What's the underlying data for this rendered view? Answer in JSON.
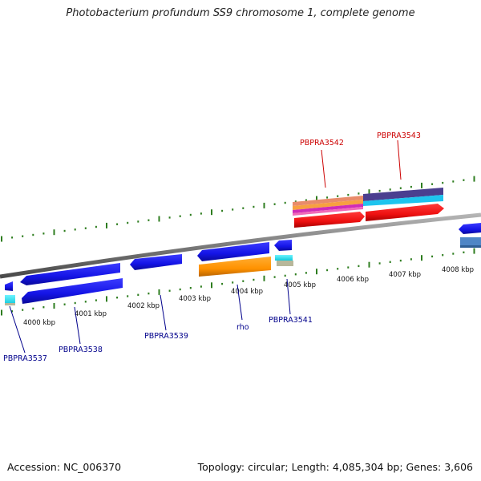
{
  "title": "Photobacterium profundum SS9 chromosome 1, complete genome",
  "footer": {
    "accession": "Accession: NC_006370",
    "topology": "Topology: circular; Length: 4,085,304 bp; Genes: 3,606"
  },
  "ticks": [
    "4000 kbp",
    "4001 kbp",
    "4002 kbp",
    "4003 kbp",
    "4004 kbp",
    "4005 kbp",
    "4006 kbp",
    "4007 kbp",
    "4008 kbp"
  ],
  "genes": {
    "PBPRA3537": "PBPRA3537",
    "PBPRA3538": "PBPRA3538",
    "PBPRA3539": "PBPRA3539",
    "rho": "rho",
    "PBPRA3541": "PBPRA3541",
    "PBPRA3542": "PBPRA3542",
    "PBPRA3543": "PBPRA3543"
  },
  "colors": {
    "backbone": "#7f7f7f",
    "tick": "#2e7d1f",
    "forward_label": "#cc0000",
    "reverse_label": "#00008b",
    "cds_blue": "#1a1aee",
    "cds_red": "#ee1111",
    "orange": "#ff9900",
    "cyan": "#19e0ee",
    "steel": "#4f86c6"
  }
}
